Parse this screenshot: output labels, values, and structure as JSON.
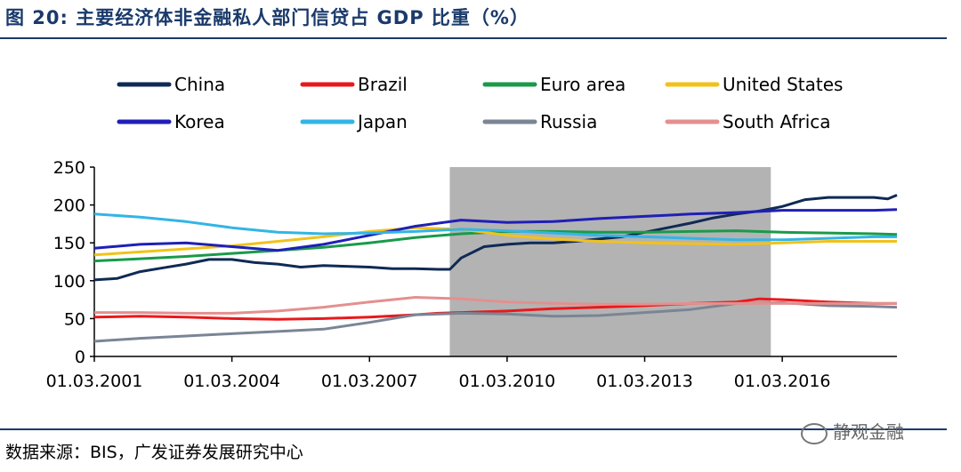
{
  "header": {
    "title": "图 20: 主要经济体非金融私人部门信贷占 GDP 比重（%）"
  },
  "footer": {
    "source": "数据来源：BIS，广发证券发展研究中心",
    "watermark": "静观金融"
  },
  "chart_data": {
    "type": "line",
    "title": "图 20: 主要经济体非金融私人部门信贷占 GDP 比重（%）",
    "xlabel": "",
    "ylabel": "%",
    "ylim": [
      0,
      250
    ],
    "yticks": [
      "0",
      "50",
      "100",
      "150",
      "200",
      "250"
    ],
    "xlim": [
      2001,
      2018.5
    ],
    "xticks": [
      {
        "value": 2001,
        "label": "01.03.2001"
      },
      {
        "value": 2004,
        "label": "01.03.2004"
      },
      {
        "value": 2007,
        "label": "01.03.2007"
      },
      {
        "value": 2010,
        "label": "01.03.2010"
      },
      {
        "value": 2013,
        "label": "01.03.2013"
      },
      {
        "value": 2016,
        "label": "01.03.2016"
      }
    ],
    "shaded_region": {
      "from": 2008.75,
      "to": 2015.75
    },
    "legend_position": "top",
    "series": [
      {
        "name": "China",
        "color": "#0f2a55",
        "x": [
          2001,
          2001.5,
          2002,
          2002.5,
          2003,
          2003.5,
          2004,
          2004.5,
          2005,
          2005.5,
          2006,
          2006.5,
          2007,
          2007.5,
          2008,
          2008.5,
          2008.75,
          2009,
          2009.5,
          2010,
          2010.5,
          2011,
          2011.5,
          2012,
          2012.5,
          2013,
          2013.5,
          2014,
          2014.5,
          2015,
          2015.5,
          2016,
          2016.5,
          2017,
          2017.5,
          2018,
          2018.3,
          2018.5
        ],
        "y": [
          101,
          103,
          112,
          117,
          122,
          128,
          128,
          124,
          122,
          118,
          120,
          119,
          118,
          116,
          116,
          115,
          115,
          130,
          145,
          148,
          150,
          150,
          152,
          155,
          158,
          164,
          170,
          176,
          183,
          188,
          192,
          198,
          207,
          210,
          210,
          210,
          208,
          213
        ]
      },
      {
        "name": "Brazil",
        "color": "#e8191c",
        "x": [
          2001,
          2002,
          2003,
          2004,
          2005,
          2006,
          2007,
          2008,
          2008.5,
          2009,
          2010,
          2011,
          2012,
          2013,
          2014,
          2015,
          2015.5,
          2016,
          2017,
          2018,
          2018.5
        ],
        "y": [
          52,
          53,
          52,
          50,
          49,
          50,
          52,
          55,
          57,
          58,
          60,
          63,
          65,
          67,
          70,
          72,
          76,
          75,
          72,
          70,
          70
        ]
      },
      {
        "name": "Euro area",
        "color": "#1a9a4a",
        "x": [
          2001,
          2002,
          2003,
          2004,
          2005,
          2006,
          2007,
          2008,
          2009,
          2010,
          2011,
          2012,
          2013,
          2014,
          2015,
          2016,
          2017,
          2018,
          2018.5
        ],
        "y": [
          126,
          129,
          132,
          136,
          140,
          144,
          150,
          157,
          162,
          165,
          165,
          164,
          164,
          165,
          166,
          164,
          163,
          162,
          161
        ]
      },
      {
        "name": "United States",
        "color": "#f2c21a",
        "x": [
          2001,
          2002,
          2003,
          2004,
          2005,
          2006,
          2007,
          2008,
          2009,
          2010,
          2011,
          2012,
          2013,
          2014,
          2015,
          2016,
          2017,
          2018,
          2018.5
        ],
        "y": [
          134,
          138,
          142,
          146,
          152,
          158,
          165,
          170,
          168,
          160,
          155,
          152,
          150,
          149,
          148,
          150,
          152,
          152,
          152
        ]
      },
      {
        "name": "Korea",
        "color": "#1f1fb8",
        "x": [
          2001,
          2002,
          2003,
          2004,
          2005,
          2006,
          2007,
          2008,
          2009,
          2010,
          2011,
          2012,
          2013,
          2014,
          2015,
          2016,
          2017,
          2018,
          2018.5
        ],
        "y": [
          143,
          148,
          150,
          145,
          140,
          148,
          160,
          172,
          180,
          177,
          178,
          182,
          185,
          188,
          190,
          193,
          193,
          193,
          194
        ]
      },
      {
        "name": "Japan",
        "color": "#33b5e5",
        "x": [
          2001,
          2002,
          2003,
          2004,
          2005,
          2006,
          2007,
          2008,
          2009,
          2010,
          2011,
          2012,
          2013,
          2014,
          2015,
          2016,
          2017,
          2018,
          2018.5
        ],
        "y": [
          188,
          184,
          178,
          170,
          164,
          162,
          163,
          165,
          168,
          166,
          163,
          160,
          158,
          156,
          154,
          154,
          156,
          158,
          158
        ]
      },
      {
        "name": "Russia",
        "color": "#7a8595",
        "x": [
          2001,
          2002,
          2003,
          2004,
          2005,
          2006,
          2007,
          2008,
          2009,
          2010,
          2011,
          2012,
          2013,
          2014,
          2015,
          2016,
          2017,
          2018,
          2018.5
        ],
        "y": [
          20,
          24,
          27,
          30,
          33,
          36,
          45,
          55,
          57,
          56,
          53,
          54,
          58,
          62,
          70,
          71,
          67,
          66,
          65
        ]
      },
      {
        "name": "South Africa",
        "color": "#e3908f",
        "x": [
          2001,
          2002,
          2003,
          2004,
          2005,
          2006,
          2007,
          2008,
          2009,
          2010,
          2011,
          2012,
          2013,
          2014,
          2015,
          2016,
          2017,
          2018,
          2018.5
        ],
        "y": [
          58,
          58,
          57,
          57,
          60,
          65,
          72,
          78,
          76,
          72,
          70,
          69,
          69,
          70,
          70,
          70,
          70,
          70,
          70
        ]
      }
    ]
  }
}
